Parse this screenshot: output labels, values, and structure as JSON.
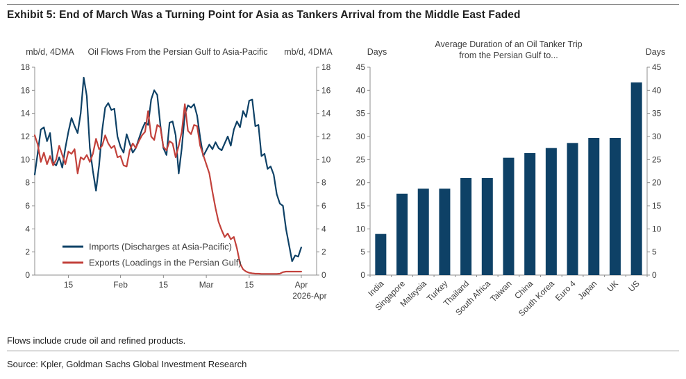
{
  "page": {
    "title": "Exhibit 5: End of March Was a Turning Point for Asia as Tankers Arrival from the Middle East Faded",
    "note": "Flows include crude oil and refined products.",
    "source": "Source: Kpler, Goldman Sachs Global Investment Research"
  },
  "colors": {
    "navy": "#0e4166",
    "red": "#c2413b",
    "axis": "#8c8c8c",
    "tick_text": "#3d3d3d",
    "title_text": "#3d3d3d"
  },
  "chart_data": [
    {
      "id": "flows",
      "type": "line",
      "title": "Oil Flows From the Persian Gulf to Asia-Pacific",
      "ylabel_left": "mb/d, 4DMA",
      "ylabel_right": "mb/d, 4DMA",
      "ylim": [
        0,
        18
      ],
      "ytick_step": 2,
      "x_start_label_day": 0,
      "x_total_days": 92,
      "x_ticks": [
        {
          "day": 11,
          "label": "15"
        },
        {
          "day": 28,
          "label": "Feb"
        },
        {
          "day": 42,
          "label": "15"
        },
        {
          "day": 56,
          "label": "Mar"
        },
        {
          "day": 70,
          "label": "15"
        },
        {
          "day": 87,
          "label": "Apr",
          "sublabel": "2026-Apr"
        }
      ],
      "legend_position": "bottom-left-inside",
      "grid": false,
      "series": [
        {
          "name": "Imports (Discharges at Asia-Pacific)",
          "color_key": "navy",
          "values": [
            8.7,
            10.6,
            12.6,
            12.8,
            11.6,
            12.3,
            9.7,
            9.5,
            10.2,
            9.3,
            11.0,
            12.4,
            13.6,
            12.9,
            12.3,
            14.0,
            17.1,
            15.5,
            11.0,
            9.0,
            7.3,
            9.5,
            12.5,
            14.5,
            14.9,
            14.3,
            14.4,
            12.0,
            11.1,
            10.6,
            12.2,
            11.4,
            10.6,
            11.0,
            11.8,
            12.6,
            13.2,
            13.0,
            15.2,
            16.0,
            15.6,
            13.0,
            11.0,
            10.4,
            13.2,
            13.3,
            12.1,
            8.8,
            11.0,
            13.9,
            14.7,
            14.5,
            14.8,
            13.8,
            11.9,
            10.3,
            10.8,
            11.3,
            10.9,
            11.5,
            11.0,
            10.8,
            11.4,
            12.0,
            11.2,
            12.6,
            13.3,
            12.8,
            14.2,
            13.7,
            15.1,
            15.2,
            12.9,
            13.0,
            10.3,
            10.5,
            9.2,
            9.4,
            8.7,
            7.0,
            6.2,
            6.0,
            4.0,
            2.6,
            1.2,
            1.7,
            1.6,
            2.4
          ]
        },
        {
          "name": "Exports (Loadings in the Persian Gulf)",
          "color_key": "red",
          "values": [
            12.1,
            11.3,
            9.8,
            10.6,
            9.6,
            10.3,
            9.5,
            10.0,
            11.2,
            10.4,
            9.6,
            10.7,
            10.5,
            10.9,
            8.8,
            10.2,
            10.0,
            10.4,
            9.8,
            10.5,
            11.8,
            10.9,
            11.2,
            12.1,
            11.4,
            11.0,
            11.2,
            10.2,
            10.3,
            9.5,
            9.4,
            10.8,
            11.4,
            11.0,
            11.6,
            12.1,
            12.4,
            14.2,
            12.0,
            11.7,
            13.0,
            12.8,
            11.1,
            10.8,
            11.6,
            11.4,
            10.2,
            11.2,
            12.4,
            14.8,
            12.5,
            12.2,
            13.0,
            12.9,
            11.2,
            10.4,
            9.6,
            8.8,
            7.2,
            5.8,
            4.6,
            3.9,
            3.3,
            3.6,
            3.1,
            3.3,
            2.3,
            1.0,
            0.5,
            0.3,
            0.2,
            0.15,
            0.12,
            0.12,
            0.1,
            0.1,
            0.1,
            0.1,
            0.1,
            0.1,
            0.12,
            0.25,
            0.3,
            0.3,
            0.3,
            0.3,
            0.3,
            0.3
          ]
        }
      ]
    },
    {
      "id": "duration",
      "type": "bar",
      "title_lines": [
        "Average Duration of an Oil Tanker Trip",
        "from the Persian Gulf to..."
      ],
      "ylabel_left": "Days",
      "ylabel_right": "Days",
      "ylim": [
        0,
        45
      ],
      "ytick_step": 5,
      "grid": false,
      "categories": [
        "India",
        "Singapore",
        "Malaysia",
        "Turkey",
        "Thailand",
        "South Africa",
        "Taiwan",
        "China",
        "South Korea",
        "Euro 4",
        "Japan",
        "UK",
        "US"
      ],
      "values": [
        8.9,
        17.6,
        18.7,
        18.7,
        21.0,
        21.0,
        25.4,
        26.4,
        27.5,
        28.6,
        29.7,
        29.7,
        41.7
      ]
    }
  ]
}
